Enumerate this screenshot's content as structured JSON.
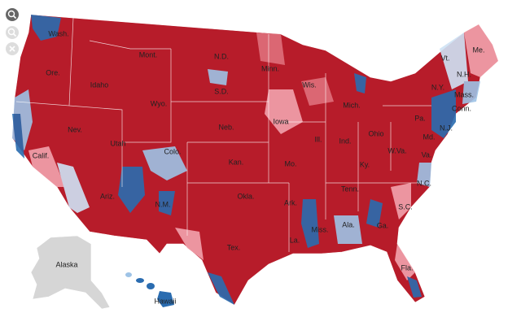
{
  "map": {
    "labels": [
      "Wash.",
      "Ore.",
      "Calif.",
      "Nev.",
      "Idaho",
      "Mont.",
      "Wyo.",
      "Utah",
      "Ariz.",
      "Colo.",
      "N.M.",
      "N.D.",
      "S.D.",
      "Neb.",
      "Kan.",
      "Okla.",
      "Tex.",
      "Minn.",
      "Iowa",
      "Mo.",
      "Ark.",
      "La.",
      "Wis.",
      "Ill.",
      "Mich.",
      "Ind.",
      "Ohio",
      "Ky.",
      "Tenn.",
      "Miss.",
      "Ala.",
      "Ga.",
      "Fla.",
      "S.C.",
      "N.C.",
      "W.Va.",
      "Va.",
      "Pa.",
      "N.Y.",
      "Vt.",
      "N.H.",
      "Me.",
      "Mass.",
      "Conn.",
      "N.J.",
      "Md.",
      "Alaska",
      "Hawaii"
    ]
  }
}
